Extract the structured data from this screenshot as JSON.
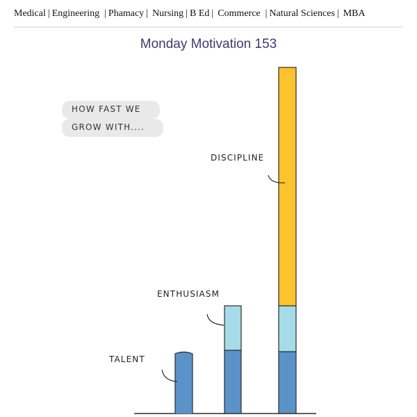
{
  "nav": {
    "items": [
      {
        "label": "Medical"
      },
      {
        "label": "Engineering"
      },
      {
        "label": "Phamacy"
      },
      {
        "label": "Nursing"
      },
      {
        "label": "B Ed"
      },
      {
        "label": "Commerce"
      },
      {
        "label": "Natural Sciences"
      },
      {
        "label": "MBA"
      }
    ],
    "separator": "|"
  },
  "title": "Monday Motivation 153",
  "bubble": {
    "line1": "HOW FAST WE",
    "line2": "GROW WITH...."
  },
  "bars": {
    "talent_label": "TALENT",
    "enthusiasm_label": "ENTHUSIASM",
    "discipline_label": "DISCIPLINE",
    "colors": {
      "talent": "#5b93c8",
      "enthusiasm": "#a6dbe8",
      "discipline": "#fcc22f",
      "outline": "#2b2b2b"
    }
  }
}
